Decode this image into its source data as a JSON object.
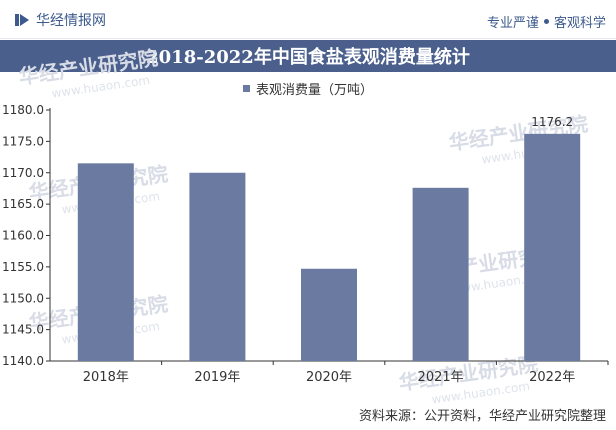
{
  "header": {
    "brand": "华经情报网",
    "slogan_left": "专业严谨",
    "slogan_right": "客观科学"
  },
  "chart_data": {
    "type": "bar",
    "title": "2018-2022年中国食盐表观消费量统计",
    "categories": [
      "2018年",
      "2019年",
      "2020年",
      "2021年",
      "2022年"
    ],
    "series": [
      {
        "name": "表观消费量（万吨）",
        "values": [
          1171.5,
          1170.0,
          1154.7,
          1167.6,
          1176.2
        ]
      }
    ],
    "data_labels": {
      "2022年": "1176.2"
    },
    "ylim": [
      1140.0,
      1180.0
    ],
    "yticks": [
      "1140.0",
      "1145.0",
      "1150.0",
      "1155.0",
      "1160.0",
      "1165.0",
      "1170.0",
      "1175.0",
      "1180.0"
    ],
    "xlabel": "",
    "ylabel": "",
    "legend_position": "top-center",
    "grid": false,
    "color": "#6a7aa0"
  },
  "footer": {
    "source": "资料来源：公开资料，华经产业研究院整理"
  },
  "watermark": {
    "text": "华经产业研究院",
    "url": "www.huaon.com"
  }
}
